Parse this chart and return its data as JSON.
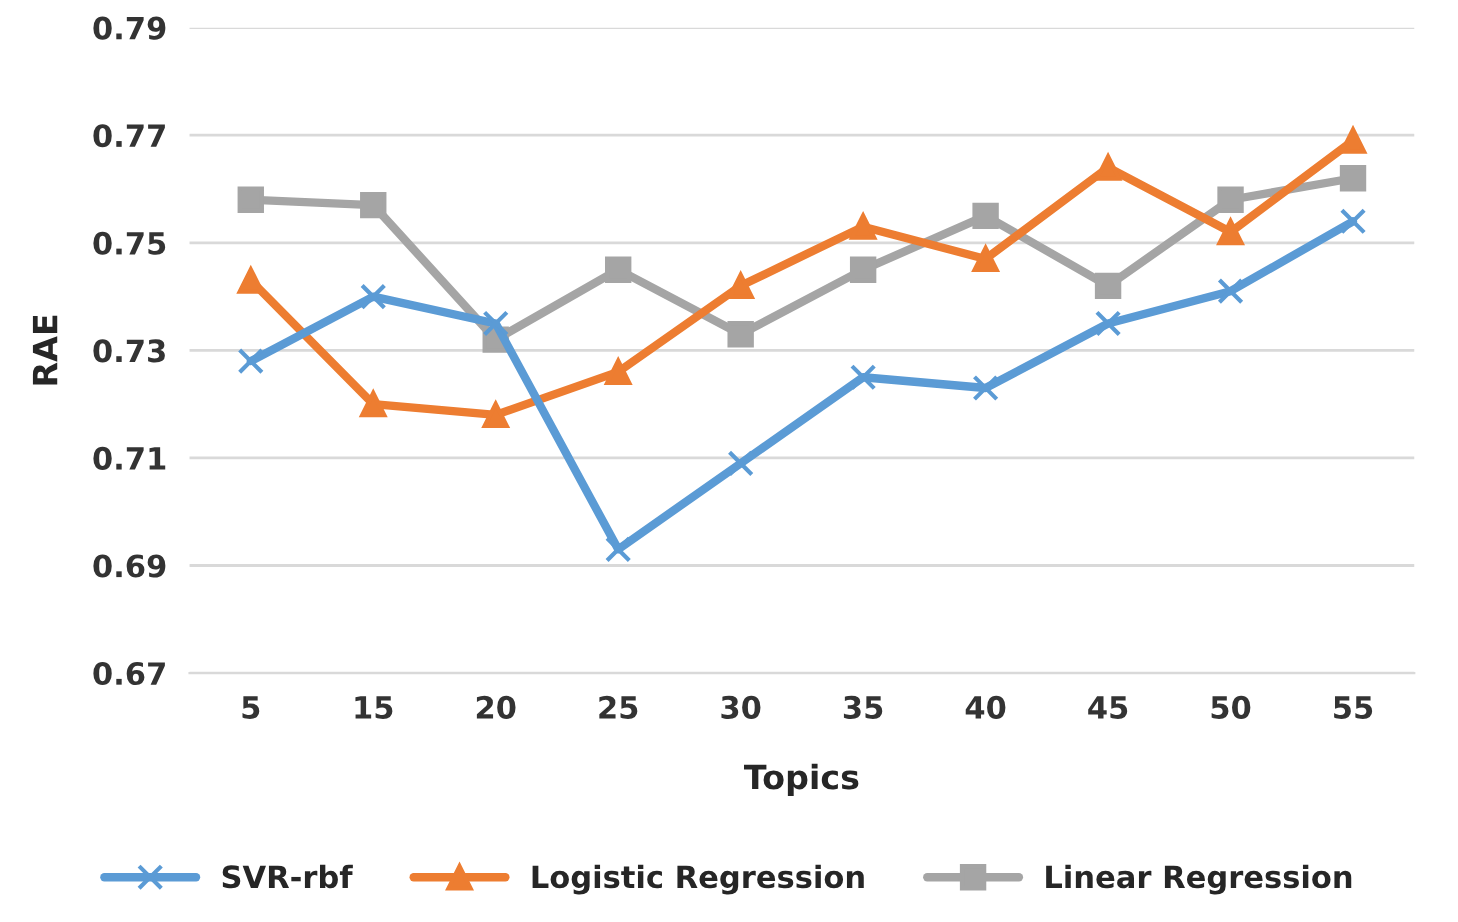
{
  "chart_data": {
    "type": "line",
    "xlabel": "Topics",
    "ylabel": "RAE",
    "categories": [
      "5",
      "15",
      "20",
      "25",
      "30",
      "35",
      "40",
      "45",
      "50",
      "55"
    ],
    "series": [
      {
        "name": "SVR-rbf",
        "color": "#5b9bd5",
        "marker": "cross",
        "values": [
          0.728,
          0.74,
          0.735,
          0.693,
          0.709,
          0.725,
          0.723,
          0.735,
          0.741,
          0.754
        ]
      },
      {
        "name": "Logistic Regression",
        "color": "#ed7d31",
        "marker": "triangle",
        "values": [
          0.743,
          0.72,
          0.718,
          0.726,
          0.742,
          0.753,
          0.747,
          0.764,
          0.752,
          0.769
        ]
      },
      {
        "name": "Linear Regression",
        "color": "#a5a5a5",
        "marker": "square",
        "values": [
          0.758,
          0.757,
          0.732,
          0.745,
          0.733,
          0.745,
          0.755,
          0.742,
          0.758,
          0.762
        ]
      }
    ],
    "ylim": [
      0.67,
      0.79
    ],
    "yticks": [
      0.67,
      0.69,
      0.71,
      0.73,
      0.75,
      0.77,
      0.79
    ],
    "grid": "y",
    "legend": "bottom"
  }
}
